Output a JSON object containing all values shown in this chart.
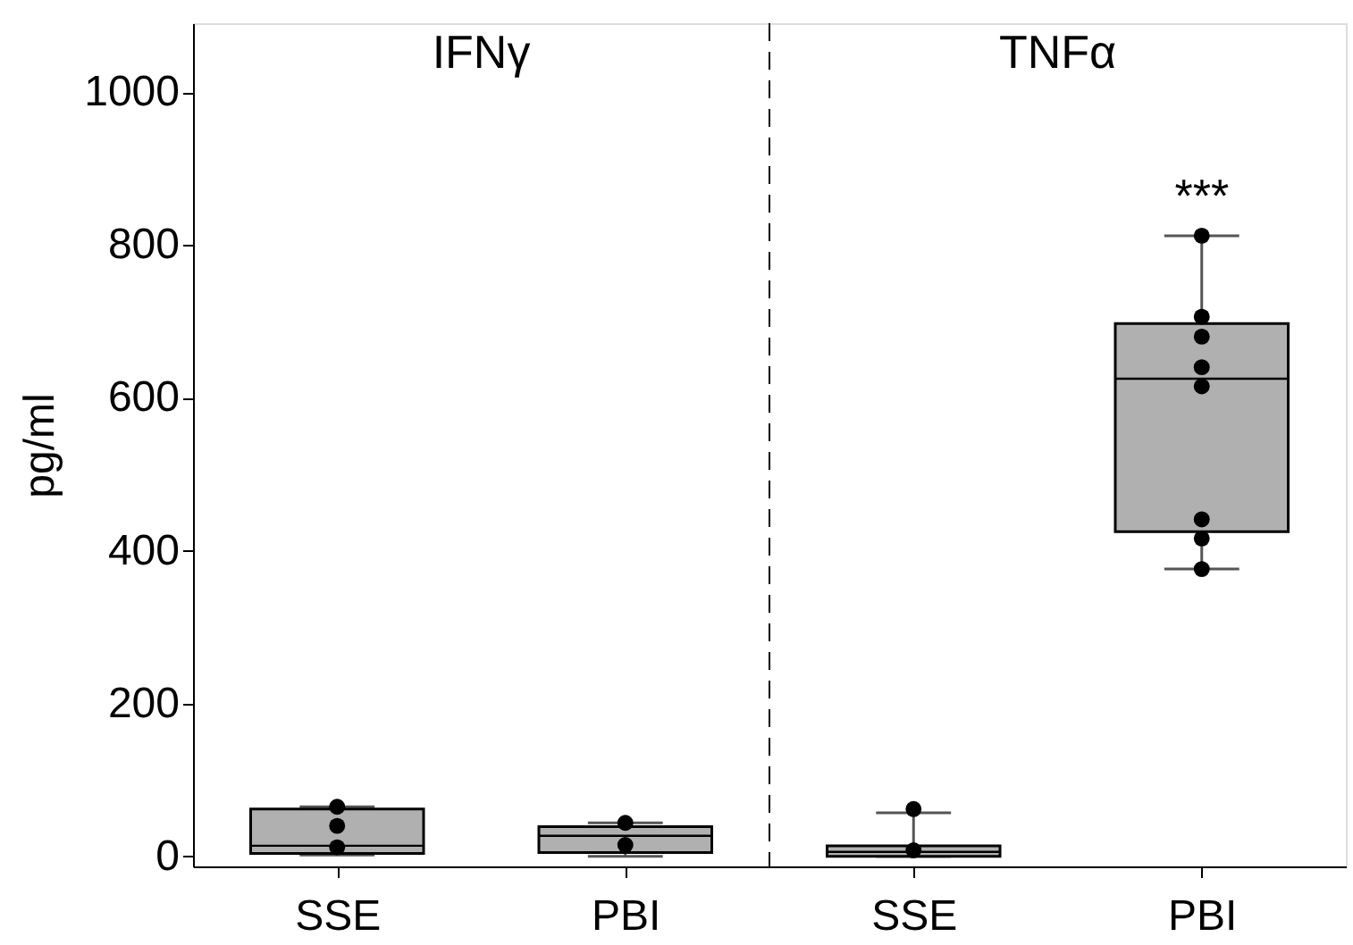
{
  "chart_data": {
    "type": "box",
    "ylabel": "pg/ml",
    "categories": [
      "SSE",
      "PBI",
      "SSE",
      "PBI"
    ],
    "boxes": [
      {
        "low": 2,
        "q1": 4,
        "median": 14,
        "q3": 62,
        "high": 65,
        "outliers": [
          65,
          40,
          12
        ]
      },
      {
        "low": 0,
        "q1": 5,
        "median": 27,
        "q3": 39,
        "high": 44,
        "outliers": [
          44,
          15
        ]
      },
      {
        "low": 0,
        "q1": 0,
        "median": 6,
        "q3": 14,
        "high": 57,
        "outliers": [
          62,
          8
        ]
      },
      {
        "low": 376,
        "q1": 425,
        "median": 625,
        "q3": 697,
        "high": 812,
        "outliers": [
          812,
          706,
          680,
          640,
          615,
          441,
          416,
          376
        ]
      }
    ],
    "colors": [
      "#b0b0b0",
      "#b0b0b0",
      "#b0b0b0",
      "#b0b0b0"
    ],
    "ylim": [
      -13,
      1090
    ],
    "yticks": [
      0,
      200,
      400,
      600,
      800,
      {
        "value": 1000,
        "label": "1000"
      }
    ],
    "annotations": [
      "IFNγ",
      "TNFα",
      "***"
    ],
    "grid": false,
    "marker": "circle"
  }
}
